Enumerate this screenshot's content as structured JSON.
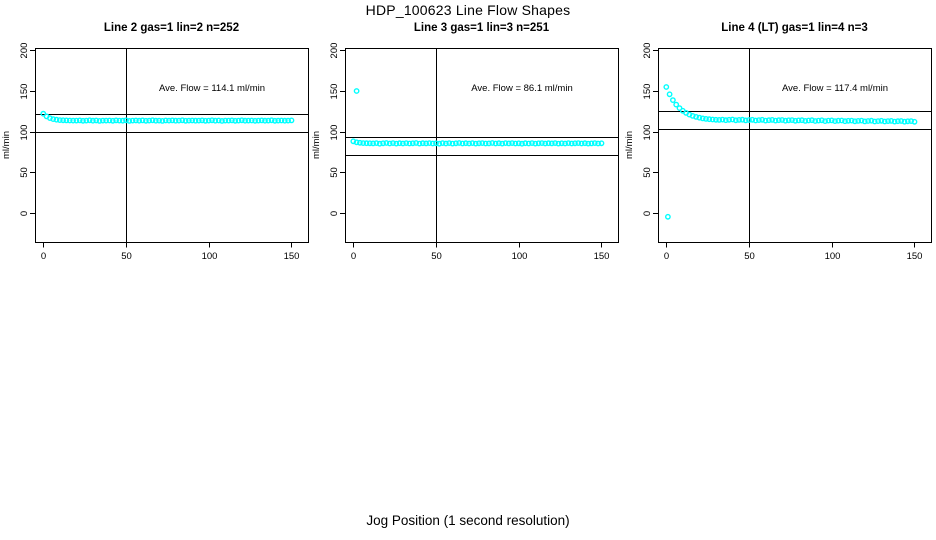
{
  "figure": {
    "title": "HDP_100623  Line Flow Shapes",
    "xlabel": "Jog Position (1 second resolution)",
    "background": "#ffffff",
    "point_color": "#00ffff",
    "axis_color": "#000000"
  },
  "chart_data": [
    {
      "type": "scatter",
      "title": "Line 2 gas=1 lin=2 n=252",
      "ylabel": "ml/min",
      "annotation": "Ave. Flow =  114.1  ml/min",
      "ave_flow": 114.1,
      "annotation_x": 102,
      "annotation_y": 150,
      "x_ticks": [
        0,
        50,
        100,
        150
      ],
      "y_ticks": [
        0,
        50,
        100,
        150,
        200
      ],
      "xlim": [
        -5,
        160
      ],
      "ylim": [
        -36,
        203
      ],
      "vline_x": 50,
      "hlines": [
        121.6,
        99.5
      ],
      "series": {
        "x_start": 0,
        "x_step": 2,
        "values": [
          122.0,
          118.7,
          116.6,
          115.4,
          114.7,
          114.2,
          113.9,
          113.8,
          113.7,
          113.6,
          113.5,
          113.8,
          113.3,
          113.6,
          113.9,
          113.4,
          113.7,
          113.2,
          113.6,
          113.5,
          113.7,
          113.3,
          113.8,
          113.5,
          113.4,
          113.9,
          113.2,
          113.6,
          113.7,
          113.4,
          113.8,
          113.3,
          113.5,
          113.9,
          113.4,
          113.6,
          113.2,
          113.7,
          113.5,
          113.8,
          113.4,
          113.6,
          113.9,
          113.3,
          113.5,
          113.7,
          113.4,
          113.6,
          113.8,
          113.3,
          113.5,
          113.9,
          113.4,
          113.7,
          113.2,
          113.6,
          113.5,
          113.8,
          113.3,
          113.6,
          113.9,
          113.4,
          113.5,
          113.7,
          113.3,
          113.6,
          113.8,
          113.4,
          113.5,
          113.9,
          113.3,
          113.6,
          113.7,
          113.4,
          113.5,
          113.8
        ]
      },
      "extra_points": []
    },
    {
      "type": "scatter",
      "title": "Line 3 gas=1 lin=3 n=251",
      "ylabel": "ml/min",
      "annotation": "Ave. Flow =  86.1  ml/min",
      "ave_flow": 86.1,
      "annotation_x": 102,
      "annotation_y": 150,
      "x_ticks": [
        0,
        50,
        100,
        150
      ],
      "y_ticks": [
        0,
        50,
        100,
        150,
        200
      ],
      "xlim": [
        -5,
        160
      ],
      "ylim": [
        -36,
        203
      ],
      "vline_x": 50,
      "hlines": [
        93.6,
        71.2
      ],
      "series": {
        "x_start": 0,
        "x_step": 2,
        "values": [
          88.0,
          86.8,
          86.2,
          85.8,
          85.7,
          85.6,
          85.5,
          85.9,
          85.1,
          85.6,
          86.0,
          85.3,
          85.8,
          85.2,
          85.7,
          85.4,
          85.9,
          85.3,
          85.6,
          86.0,
          85.2,
          85.7,
          85.5,
          85.9,
          85.3,
          85.6,
          85.1,
          85.8,
          85.4,
          85.9,
          85.2,
          85.6,
          86.0,
          85.3,
          85.7,
          85.4,
          85.8,
          85.2,
          85.6,
          85.9,
          85.3,
          85.5,
          86.0,
          85.4,
          85.7,
          85.2,
          85.8,
          85.5,
          85.9,
          85.3,
          85.6,
          85.1,
          85.7,
          85.4,
          85.9,
          85.2,
          85.6,
          85.8,
          85.3,
          85.7,
          85.5,
          85.9,
          85.2,
          85.6,
          85.4,
          85.8,
          85.3,
          85.6,
          85.9,
          85.4,
          85.7,
          85.2,
          85.5,
          85.8,
          85.3,
          85.6
        ]
      },
      "extra_points": [
        [
          2,
          150
        ]
      ]
    },
    {
      "type": "scatter",
      "title": "Line 4 (LT) gas=1 lin=4 n=3",
      "ylabel": "ml/min",
      "annotation": "Ave. Flow =  117.4  ml/min",
      "ave_flow": 117.4,
      "annotation_x": 102,
      "annotation_y": 150,
      "x_ticks": [
        0,
        50,
        100,
        150
      ],
      "y_ticks": [
        0,
        50,
        100,
        150,
        200
      ],
      "xlim": [
        -5,
        160
      ],
      "ylim": [
        -36,
        203
      ],
      "vline_x": 50,
      "hlines": [
        125.2,
        102.7
      ],
      "series": {
        "x_start": 0,
        "x_step": 2,
        "values": [
          155.0,
          145.9,
          138.8,
          133.3,
          129.0,
          125.6,
          123.0,
          120.9,
          119.3,
          118.1,
          117.1,
          116.3,
          115.7,
          115.3,
          114.9,
          114.6,
          114.4,
          114.8,
          114.0,
          114.5,
          114.9,
          113.9,
          114.4,
          114.7,
          113.8,
          114.3,
          114.6,
          113.7,
          114.2,
          114.5,
          113.6,
          114.1,
          114.4,
          113.5,
          114.0,
          114.3,
          113.4,
          113.9,
          114.2,
          113.3,
          113.8,
          114.1,
          113.2,
          113.7,
          114.0,
          113.1,
          113.6,
          113.9,
          113.0,
          113.5,
          113.8,
          112.9,
          113.4,
          113.7,
          112.8,
          113.3,
          113.6,
          112.7,
          113.2,
          113.5,
          112.6,
          113.1,
          113.4,
          112.5,
          113.0,
          113.3,
          112.4,
          112.9,
          113.2,
          112.3,
          112.8,
          113.1,
          112.2,
          112.7,
          113.0,
          112.1
        ]
      },
      "extra_points": [
        [
          1,
          -5
        ]
      ]
    }
  ]
}
